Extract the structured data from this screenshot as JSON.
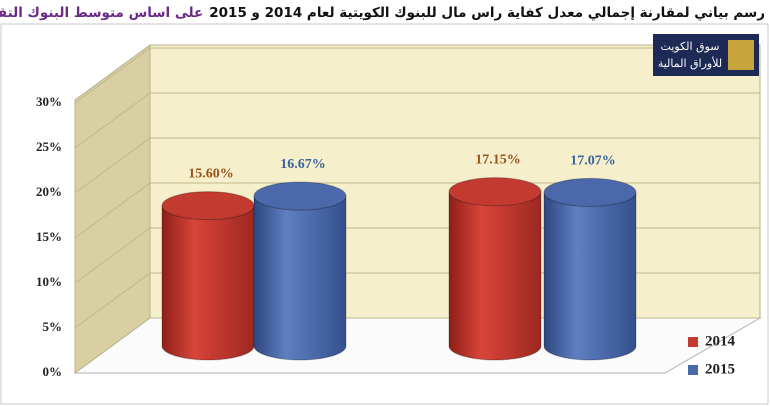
{
  "chart_data": {
    "type": "cylinder-bar",
    "title": "رسم بياني لمقارنة إجمالي معدل كفاية راس مال للبنوك الكويتية لعام 2014 و 2015",
    "subtitle": "على اساس متوسط البنوك التقليدية والإسلامية",
    "categories": [
      null,
      null
    ],
    "series": [
      {
        "name": "2014",
        "color": "#c23a30",
        "label_color": "#9a5418",
        "values": [
          15.6,
          17.15
        ],
        "value_labels": [
          "15.60%",
          "17.15%"
        ]
      },
      {
        "name": "2015",
        "color": "#4a68aa",
        "label_color": "#3a64a0",
        "values": [
          16.67,
          17.07
        ],
        "value_labels": [
          "16.67%",
          "17.07%"
        ]
      }
    ],
    "ylim": [
      0,
      30
    ],
    "yticks": [
      {
        "value": 0,
        "label": "0%"
      },
      {
        "value": 5,
        "label": "5%"
      },
      {
        "value": 10,
        "label": "10%"
      },
      {
        "value": 15,
        "label": "15%"
      },
      {
        "value": 20,
        "label": "20%"
      },
      {
        "value": 25,
        "label": "25%"
      },
      {
        "value": 30,
        "label": "30%"
      }
    ],
    "grid": true,
    "legend": "bottom-right"
  },
  "logo_text": [
    "سوق الكويت",
    "للأوراق المالية"
  ]
}
